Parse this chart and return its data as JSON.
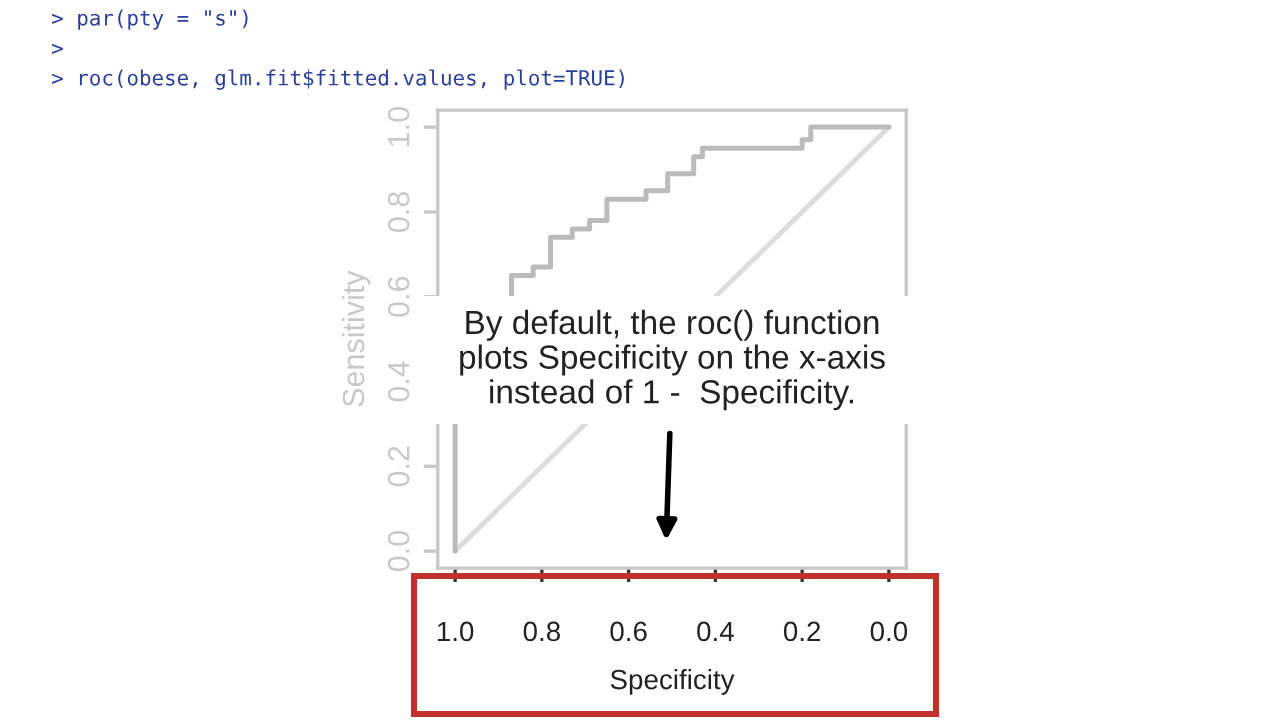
{
  "chart_data": {
    "type": "line",
    "xlabel": "Specificity",
    "ylabel": "Sensitivity",
    "xlim": [
      1.04,
      -0.04
    ],
    "ylim": [
      -0.04,
      1.04
    ],
    "xticks": [
      {
        "value": 1.0,
        "label": "1.0"
      },
      0.8,
      0.6,
      0.4,
      0.2,
      {
        "value": 0.0,
        "label": "0.0"
      }
    ],
    "yticks": [
      {
        "value": 0.0,
        "label": "0.0"
      },
      0.2,
      0.4,
      0.6,
      0.8,
      {
        "value": 1.0,
        "label": "1.0"
      }
    ],
    "series": [
      {
        "color": "#dddddd",
        "x": [
          1.0,
          0.7,
          0.55,
          0.4,
          0.0
        ],
        "values": [
          0.0,
          0.3,
          null,
          0.6,
          1.0
        ]
      },
      {
        "color": "#bbbbbb",
        "x": [
          1.0,
          1.0,
          0.95,
          0.87,
          0.87,
          0.82,
          0.82,
          0.78,
          0.78,
          0.73,
          0.73,
          0.69,
          0.69,
          0.65,
          0.65,
          0.56,
          0.56,
          0.51,
          0.51,
          0.45,
          0.45,
          0.43,
          0.43,
          0.2,
          0.2,
          0.18,
          0.18,
          0.0
        ],
        "values": [
          0.0,
          0.3,
          null,
          0.6,
          0.65,
          0.65,
          0.67,
          0.67,
          0.74,
          0.74,
          0.76,
          0.76,
          0.78,
          0.78,
          0.83,
          0.83,
          0.85,
          0.85,
          0.89,
          0.89,
          0.93,
          0.93,
          0.95,
          0.95,
          0.97,
          0.97,
          1.0,
          1.0
        ]
      }
    ],
    "annotations": [
      "> par(pty = \"s\")",
      ">",
      "> roc(obese, glm.fit$fitted.values, plot=TRUE)",
      "By default, the roc() function\nplots Specificity on the x-axis\ninstead of 1 -  Specificity."
    ],
    "grid": false,
    "legend": false
  }
}
